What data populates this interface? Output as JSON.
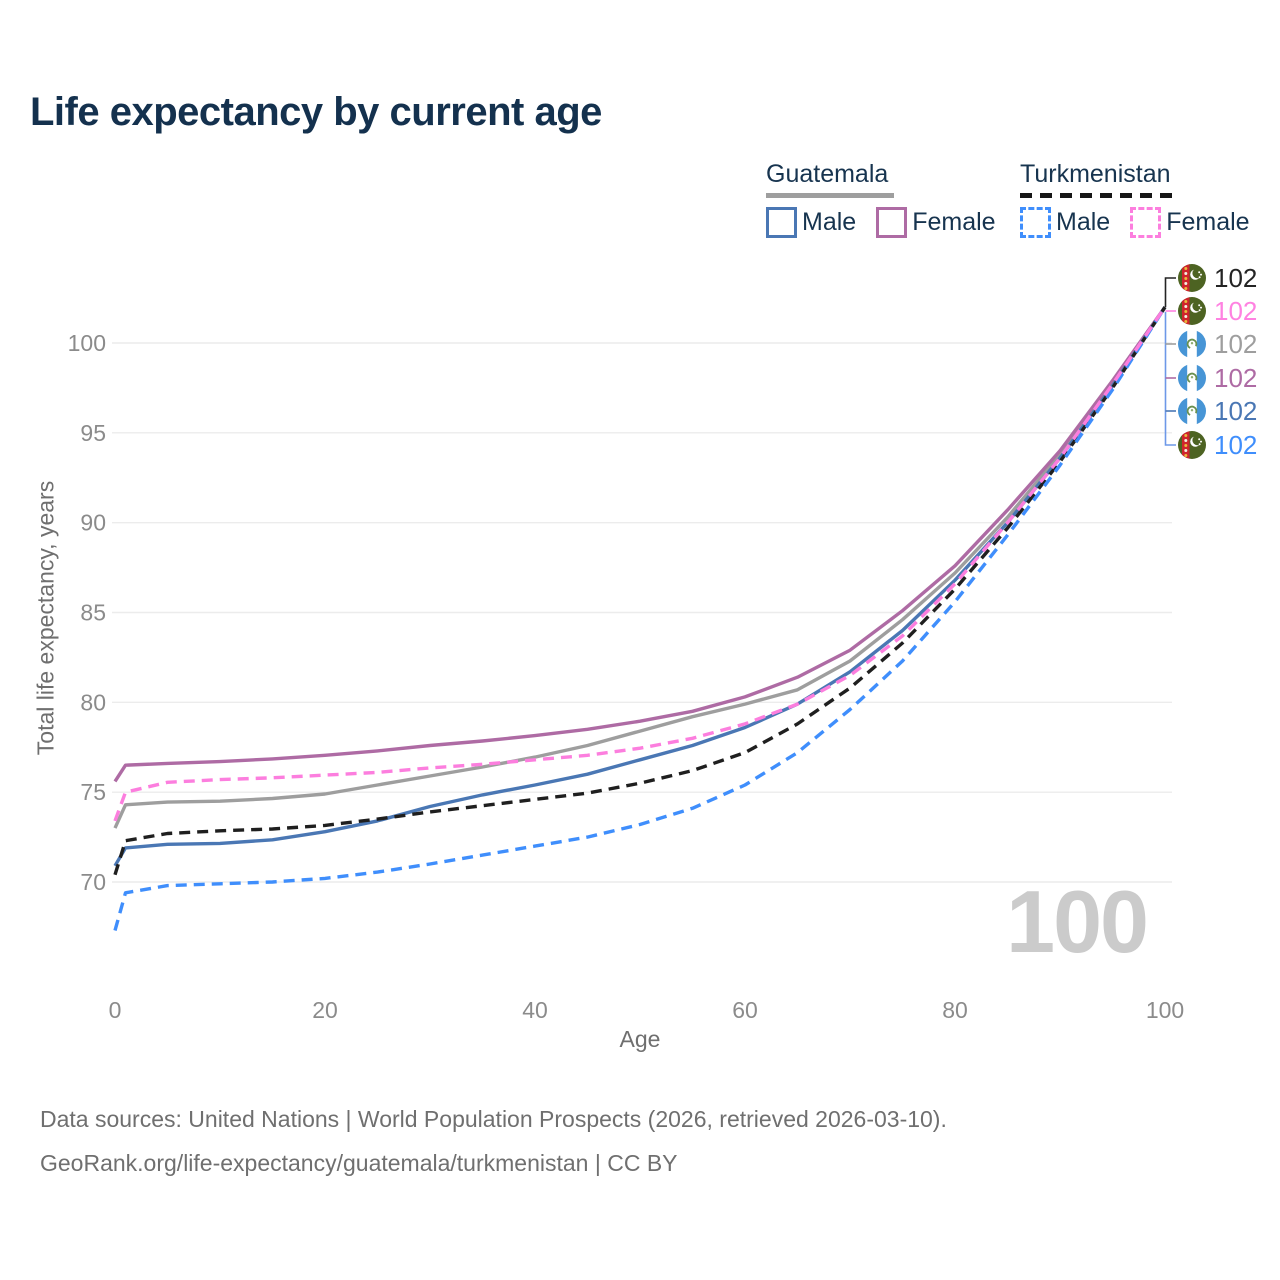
{
  "title": "Life expectancy by current age",
  "legend": {
    "groups": [
      {
        "country": "Guatemala",
        "line_color": "#9e9e9e",
        "line_style": "solid",
        "items": [
          {
            "label": "Male",
            "color": "#4a77b4",
            "style": "solid"
          },
          {
            "label": "Female",
            "color": "#ae6ba4",
            "style": "solid"
          }
        ]
      },
      {
        "country": "Turkmenistan",
        "line_color": "#1f1f1f",
        "line_style": "dashed",
        "items": [
          {
            "label": "Male",
            "color": "#3f8efc",
            "style": "dashed"
          },
          {
            "label": "Female",
            "color": "#fc7ede",
            "style": "dashed"
          }
        ]
      }
    ]
  },
  "watermark": "100",
  "end_labels": [
    {
      "flag": "turkmenistan",
      "series": "turkmenistan-avg",
      "value": "102",
      "color": "#242424"
    },
    {
      "flag": "turkmenistan",
      "series": "turkmenistan-female",
      "value": "102",
      "color": "#ff82e1"
    },
    {
      "flag": "guatemala",
      "series": "guatemala-avg",
      "value": "102",
      "color": "#9e9e9e"
    },
    {
      "flag": "guatemala",
      "series": "guatemala-female",
      "value": "102",
      "color": "#ae6ba4"
    },
    {
      "flag": "guatemala",
      "series": "guatemala-male",
      "value": "102",
      "color": "#4a77b4"
    },
    {
      "flag": "turkmenistan",
      "series": "turkmenistan-male",
      "value": "102",
      "color": "#3f8efc"
    }
  ],
  "footer": {
    "line1": "Data sources: United Nations | World Population Prospects (2026, retrieved 2026-03-10).",
    "line2": "GeoRank.org/life-expectancy/guatemala/turkmenistan | CC BY"
  },
  "chart_data": {
    "type": "line",
    "title": "Life expectancy by current age",
    "xlabel": "Age",
    "ylabel": "Total life expectancy, years",
    "x_ticks": [
      0,
      20,
      40,
      60,
      80,
      100
    ],
    "y_ticks": [
      70,
      75,
      80,
      85,
      90,
      95,
      100
    ],
    "xlim": [
      0,
      100
    ],
    "ylim": [
      67,
      103
    ],
    "grid": "horizontal",
    "legend_position": "top-right",
    "current_age_indicator": 100,
    "x": [
      0,
      1,
      5,
      10,
      15,
      20,
      25,
      30,
      35,
      40,
      45,
      50,
      55,
      60,
      65,
      70,
      75,
      80,
      85,
      90,
      95,
      100
    ],
    "series": [
      {
        "id": "guatemala-avg",
        "name": "Guatemala",
        "country": "Guatemala",
        "sex": "all",
        "color": "#9e9e9e",
        "dash": "solid",
        "values": [
          73.0,
          74.3,
          74.45,
          74.5,
          74.65,
          74.9,
          75.4,
          75.9,
          76.4,
          76.95,
          77.6,
          78.4,
          79.2,
          79.9,
          80.7,
          82.3,
          84.6,
          87.2,
          90.3,
          93.8,
          97.7,
          102
        ]
      },
      {
        "id": "guatemala-female",
        "name": "Guatemala Female",
        "country": "Guatemala",
        "sex": "female",
        "color": "#ae6ba4",
        "dash": "solid",
        "values": [
          75.6,
          76.5,
          76.6,
          76.7,
          76.85,
          77.05,
          77.3,
          77.6,
          77.85,
          78.15,
          78.5,
          78.95,
          79.5,
          80.3,
          81.4,
          82.9,
          85.1,
          87.6,
          90.7,
          94.0,
          97.9,
          102
        ]
      },
      {
        "id": "guatemala-male",
        "name": "Guatemala Male",
        "country": "Guatemala",
        "sex": "male",
        "color": "#4a77b4",
        "dash": "solid",
        "values": [
          70.9,
          71.9,
          72.1,
          72.15,
          72.35,
          72.8,
          73.4,
          74.2,
          74.85,
          75.4,
          76.0,
          76.8,
          77.6,
          78.6,
          79.9,
          81.7,
          84.0,
          86.8,
          90.0,
          93.6,
          97.6,
          102
        ]
      },
      {
        "id": "turkmenistan-avg",
        "name": "Turkmenistan",
        "country": "Turkmenistan",
        "sex": "all",
        "color": "#1f1f1f",
        "dash": "dashed",
        "values": [
          70.4,
          72.3,
          72.7,
          72.85,
          72.95,
          73.15,
          73.5,
          73.9,
          74.25,
          74.6,
          74.95,
          75.5,
          76.2,
          77.2,
          78.8,
          80.8,
          83.3,
          86.3,
          89.7,
          93.4,
          97.5,
          102
        ]
      },
      {
        "id": "turkmenistan-male",
        "name": "Turkmenistan Male",
        "country": "Turkmenistan",
        "sex": "male",
        "color": "#3f8efc",
        "dash": "dashed",
        "values": [
          67.3,
          69.4,
          69.8,
          69.9,
          70.0,
          70.2,
          70.55,
          71.0,
          71.5,
          72.0,
          72.5,
          73.2,
          74.1,
          75.4,
          77.2,
          79.6,
          82.3,
          85.6,
          89.3,
          93.2,
          97.4,
          102
        ]
      },
      {
        "id": "turkmenistan-female",
        "name": "Turkmenistan Female",
        "country": "Turkmenistan",
        "sex": "female",
        "color": "#fc7ede",
        "dash": "dashed",
        "values": [
          73.4,
          75.0,
          75.55,
          75.7,
          75.8,
          75.95,
          76.1,
          76.35,
          76.55,
          76.8,
          77.05,
          77.45,
          78.0,
          78.8,
          79.9,
          81.5,
          83.7,
          86.6,
          90.0,
          93.6,
          97.7,
          102
        ]
      }
    ]
  }
}
